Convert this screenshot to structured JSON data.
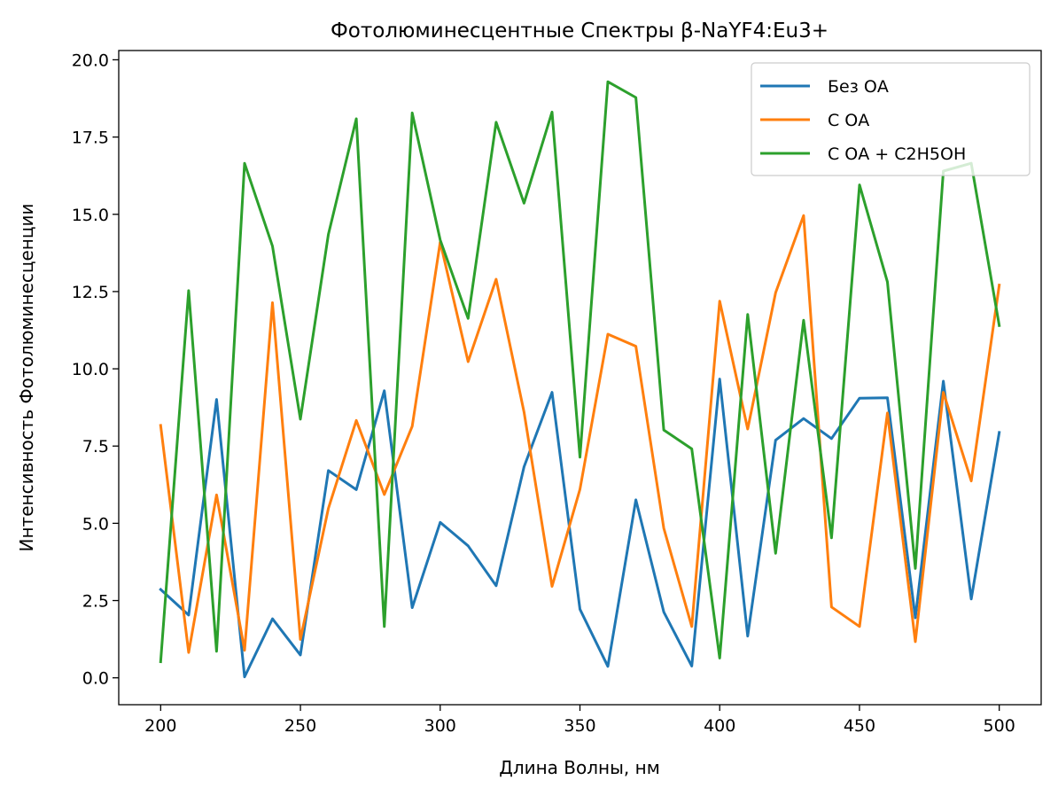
{
  "chart_data": {
    "type": "line",
    "title": "Фотолюминесцентные Спектры β-NaYF4:Eu3+",
    "xlabel": "Длина Волны, нм",
    "ylabel": "Интенсивность Фотолюминесценции",
    "xlim": [
      185,
      515
    ],
    "ylim": [
      -0.87,
      20.3
    ],
    "xticks": [
      200,
      250,
      300,
      350,
      400,
      450,
      500
    ],
    "yticks": [
      0.0,
      2.5,
      5.0,
      7.5,
      10.0,
      12.5,
      15.0,
      17.5,
      20.0
    ],
    "xtick_labels": [
      "200",
      "250",
      "300",
      "350",
      "400",
      "450",
      "500"
    ],
    "ytick_labels": [
      "0.0",
      "2.5",
      "5.0",
      "7.5",
      "10.0",
      "12.5",
      "15.0",
      "17.5",
      "20.0"
    ],
    "grid": false,
    "legend_position": "top-right",
    "x": [
      200,
      210,
      220,
      230,
      240,
      250,
      260,
      270,
      280,
      290,
      300,
      310,
      320,
      330,
      340,
      350,
      360,
      370,
      380,
      390,
      400,
      410,
      420,
      430,
      440,
      450,
      460,
      470,
      480,
      490,
      500
    ],
    "series": [
      {
        "name": "Без ОА",
        "color": "#1f77b4",
        "values": [
          2.86,
          2.03,
          9.01,
          0.03,
          1.91,
          0.74,
          6.71,
          6.09,
          9.29,
          2.27,
          5.03,
          4.27,
          2.98,
          6.83,
          9.24,
          2.22,
          0.37,
          5.76,
          2.13,
          0.38,
          9.67,
          1.35,
          7.69,
          8.39,
          7.74,
          9.05,
          9.06,
          1.94,
          9.6,
          2.55,
          7.94
        ]
      },
      {
        "name": "С ОА",
        "color": "#ff7f0e",
        "values": [
          8.17,
          0.82,
          5.92,
          0.89,
          12.14,
          1.24,
          5.48,
          8.33,
          5.93,
          8.14,
          14.1,
          10.23,
          12.9,
          8.6,
          2.96,
          6.1,
          11.12,
          10.73,
          4.84,
          1.66,
          12.19,
          8.05,
          12.46,
          14.96,
          2.29,
          1.66,
          8.57,
          1.17,
          9.24,
          6.37,
          12.71
        ]
      },
      {
        "name": "С ОА + C2H5OH",
        "color": "#2ca02c",
        "values": [
          0.52,
          12.53,
          0.86,
          16.65,
          13.97,
          8.37,
          14.35,
          18.09,
          1.66,
          18.28,
          14.17,
          11.63,
          17.98,
          15.36,
          18.31,
          7.14,
          19.29,
          18.78,
          8.02,
          7.41,
          0.64,
          11.76,
          4.03,
          11.57,
          4.53,
          15.95,
          12.81,
          3.54,
          16.4,
          16.65,
          11.4
        ]
      }
    ]
  }
}
